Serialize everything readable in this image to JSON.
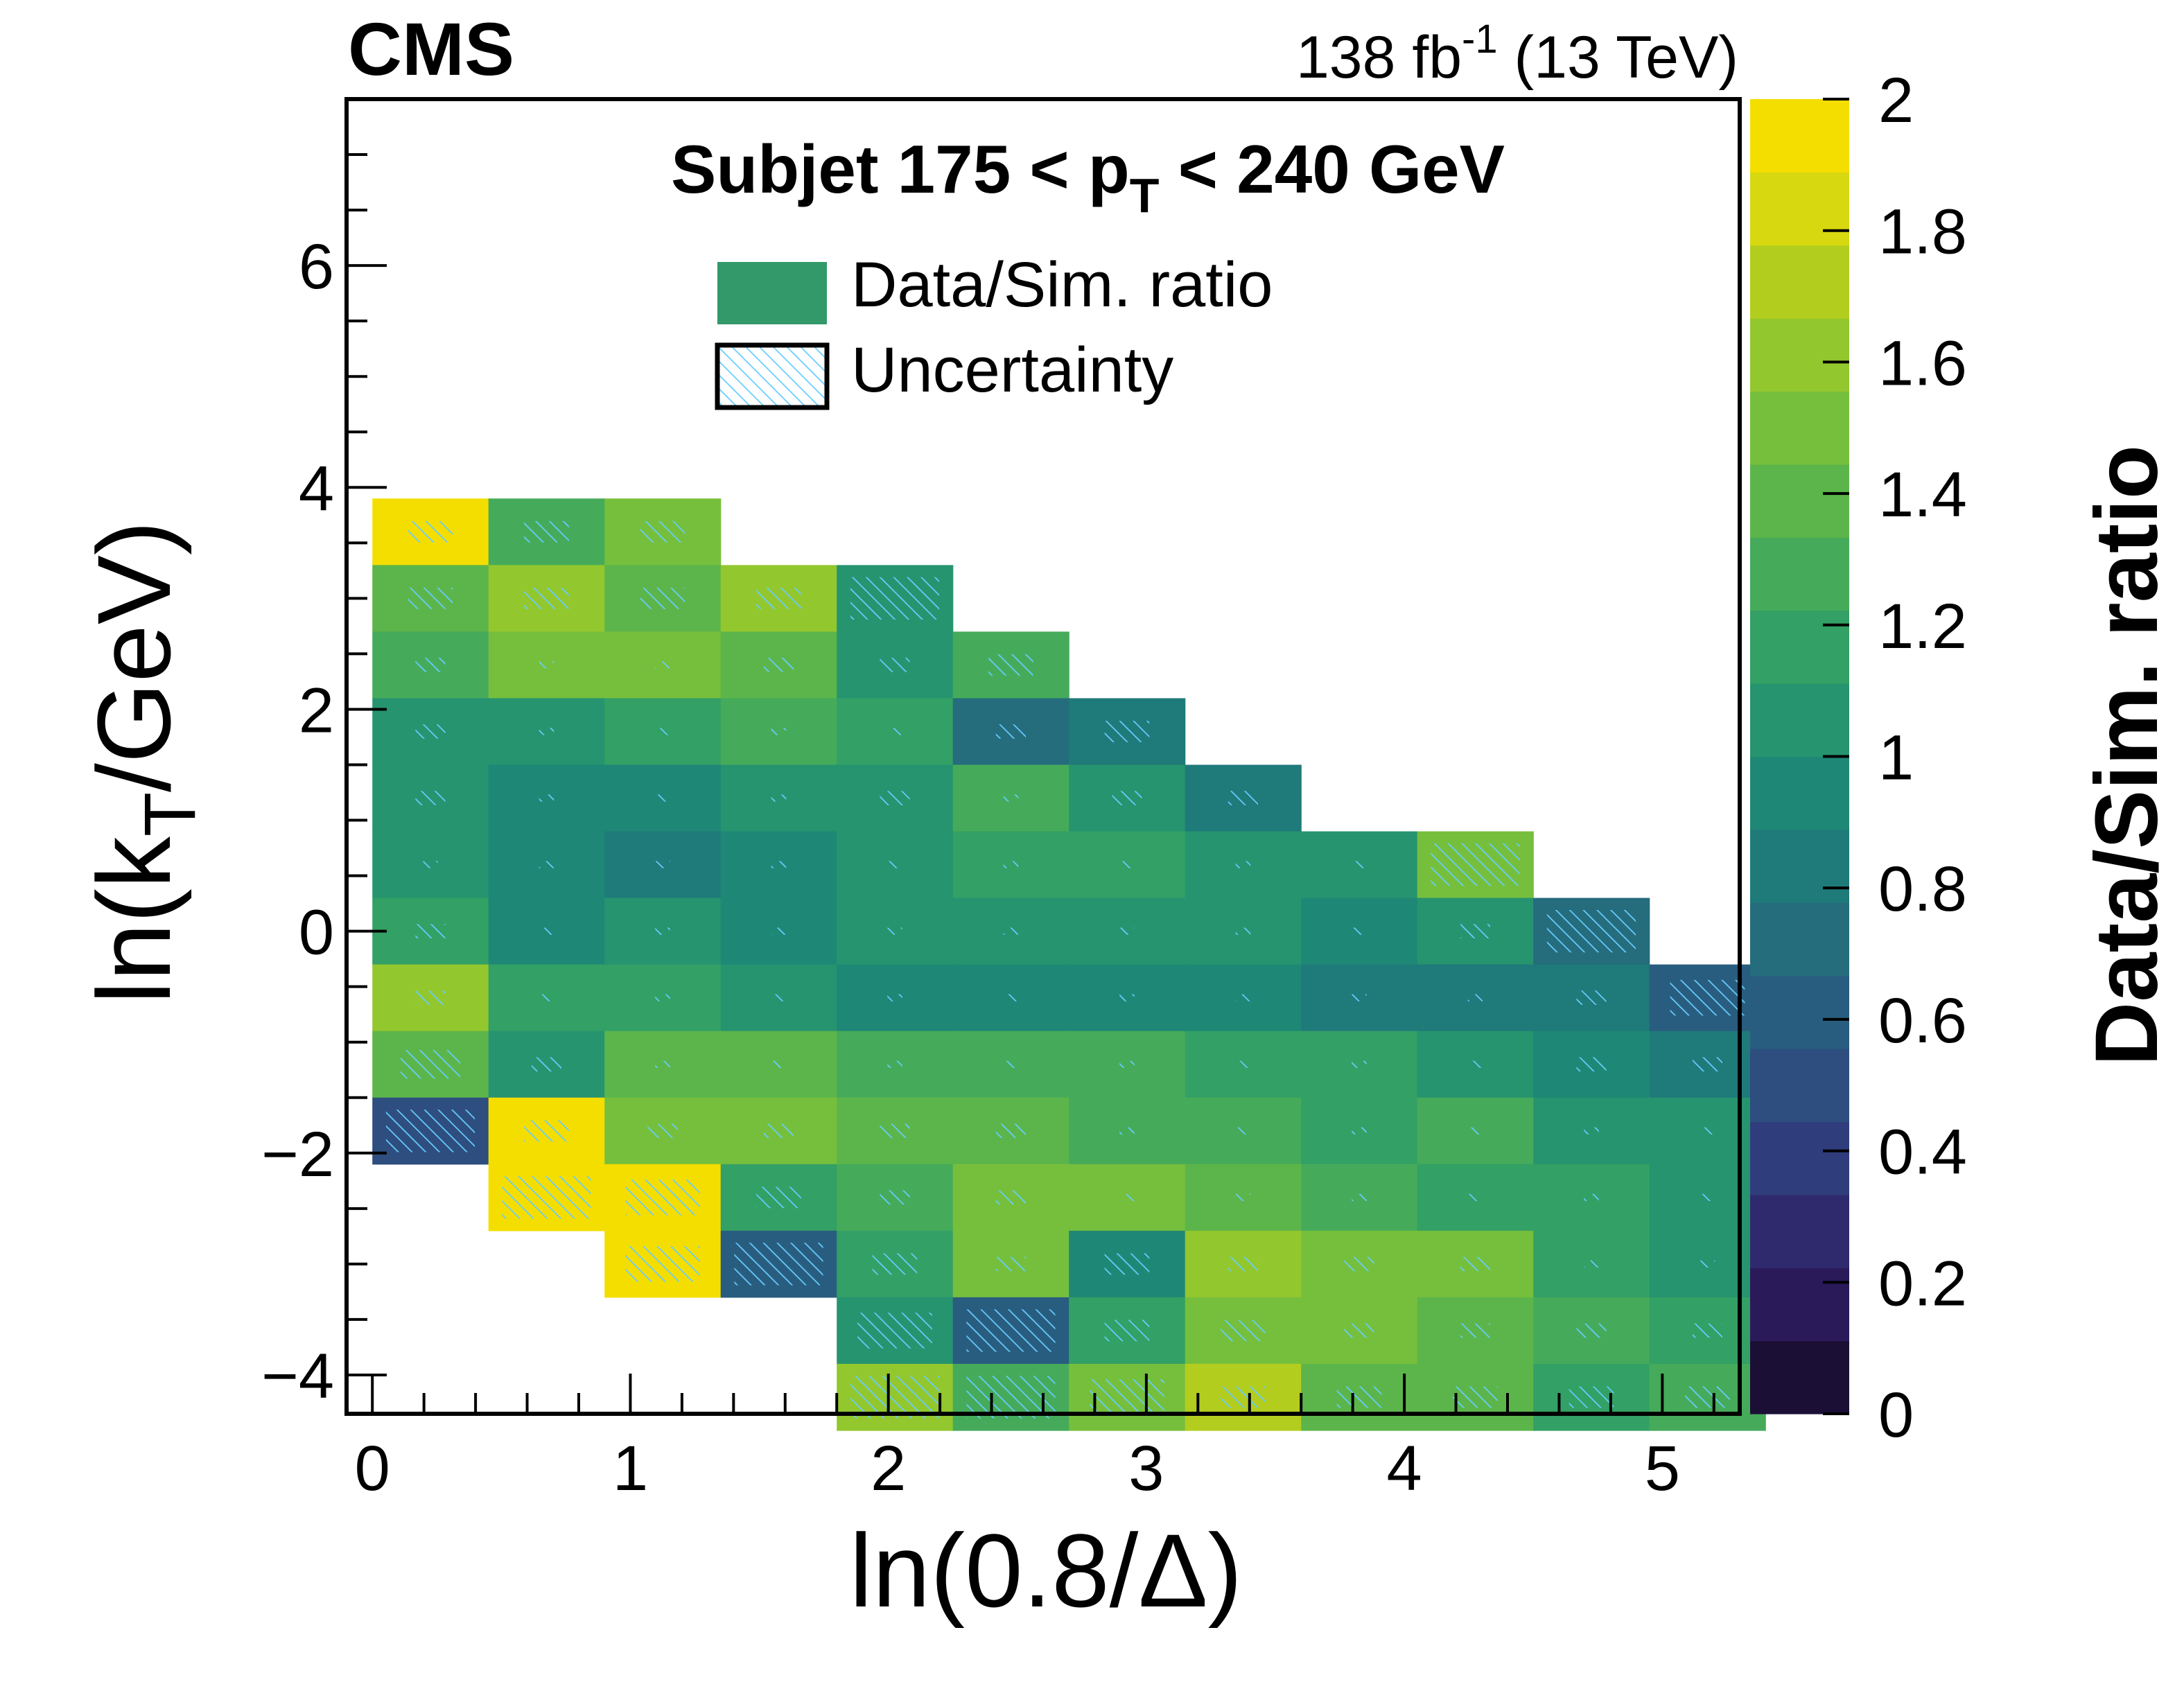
{
  "chart_data": {
    "type": "heatmap",
    "experiment": "CMS",
    "lumi": {
      "value": "138 fb",
      "exponent": "-1",
      "energy": "(13 TeV)"
    },
    "title": {
      "prefix": "Subjet 175 < p",
      "sub": "T",
      "suffix": " < 240 GeV"
    },
    "legend": [
      {
        "label": "Data/Sim. ratio"
      },
      {
        "label": "Uncertainty"
      }
    ],
    "legend_placement": "top-center",
    "xlabel": "ln(0.8/Δ)",
    "ylabel": {
      "prefix": "ln(k",
      "sub": "T",
      "suffix": "/GeV)"
    },
    "zlabel": "Data/Sim. ratio",
    "xlim": [
      -0.1,
      5.3
    ],
    "ylim": [
      -4.35,
      7.5
    ],
    "zlim": [
      0,
      2
    ],
    "x_ticks": [
      0,
      1,
      2,
      3,
      4,
      5
    ],
    "x_tick_labels": [
      "0",
      "1",
      "2",
      "3",
      "4",
      "5"
    ],
    "y_ticks": [
      -4,
      -2,
      0,
      2,
      4,
      6
    ],
    "y_tick_labels": [
      "−4",
      "−2",
      "0",
      "2",
      "4",
      "6"
    ],
    "z_ticks": [
      0,
      0.2,
      0.4,
      0.6,
      0.8,
      1,
      1.2,
      1.4,
      1.6,
      1.8,
      2
    ],
    "z_tick_labels": [
      "0",
      "0.2",
      "0.4",
      "0.6",
      "0.8",
      "1",
      "1.2",
      "1.4",
      "1.6",
      "1.8",
      "2"
    ],
    "palette": [
      "#1c0f35",
      "#2b1a5a",
      "#2f2a6e",
      "#303d7c",
      "#2d4e7e",
      "#295d7f",
      "#256c7d",
      "#1f7a7a",
      "#1f8775",
      "#26946f",
      "#33a065",
      "#45ab5a",
      "#5cb54a",
      "#76bf3c",
      "#93c72e",
      "#b3cd1e",
      "#d7d80f",
      "#f4de00"
    ],
    "cell_width": 0.45,
    "cell_height": 0.6,
    "cells": [
      {
        "x": 0.0,
        "y": 3.9,
        "z": 2.0,
        "u": 0.15
      },
      {
        "x": 0.45,
        "y": 3.9,
        "z": 1.3,
        "u": 0.15
      },
      {
        "x": 0.9,
        "y": 3.9,
        "z": 1.5,
        "u": 0.15
      },
      {
        "x": 0.0,
        "y": 3.3,
        "z": 1.35,
        "u": 0.15
      },
      {
        "x": 0.45,
        "y": 3.3,
        "z": 1.6,
        "u": 0.15
      },
      {
        "x": 0.9,
        "y": 3.3,
        "z": 1.35,
        "u": 0.15
      },
      {
        "x": 1.35,
        "y": 3.3,
        "z": 1.6,
        "u": 0.15
      },
      {
        "x": 1.8,
        "y": 3.3,
        "z": 1.0,
        "u": 0.3
      },
      {
        "x": 0.0,
        "y": 2.7,
        "z": 1.25,
        "u": 0.1
      },
      {
        "x": 0.45,
        "y": 2.7,
        "z": 1.5,
        "u": 0.05
      },
      {
        "x": 0.9,
        "y": 2.7,
        "z": 1.5,
        "u": 0.05
      },
      {
        "x": 1.35,
        "y": 2.7,
        "z": 1.4,
        "u": 0.1
      },
      {
        "x": 1.8,
        "y": 2.7,
        "z": 1.0,
        "u": 0.1
      },
      {
        "x": 2.25,
        "y": 2.7,
        "z": 1.3,
        "u": 0.15
      },
      {
        "x": 0.0,
        "y": 2.1,
        "z": 1.05,
        "u": 0.1
      },
      {
        "x": 0.45,
        "y": 2.1,
        "z": 1.1,
        "u": 0.05
      },
      {
        "x": 0.9,
        "y": 2.1,
        "z": 1.2,
        "u": 0.05
      },
      {
        "x": 1.35,
        "y": 2.1,
        "z": 1.3,
        "u": 0.05
      },
      {
        "x": 1.8,
        "y": 2.1,
        "z": 1.15,
        "u": 0.05
      },
      {
        "x": 2.25,
        "y": 2.1,
        "z": 0.75,
        "u": 0.1
      },
      {
        "x": 2.7,
        "y": 2.1,
        "z": 0.8,
        "u": 0.15
      },
      {
        "x": 0.0,
        "y": 1.5,
        "z": 1.05,
        "u": 0.1
      },
      {
        "x": 0.45,
        "y": 1.5,
        "z": 0.9,
        "u": 0.05
      },
      {
        "x": 0.9,
        "y": 1.5,
        "z": 0.9,
        "u": 0.05
      },
      {
        "x": 1.35,
        "y": 1.5,
        "z": 1.0,
        "u": 0.05
      },
      {
        "x": 1.8,
        "y": 1.5,
        "z": 1.05,
        "u": 0.1
      },
      {
        "x": 2.25,
        "y": 1.5,
        "z": 1.3,
        "u": 0.05
      },
      {
        "x": 2.7,
        "y": 1.5,
        "z": 1.05,
        "u": 0.1
      },
      {
        "x": 3.15,
        "y": 1.5,
        "z": 0.8,
        "u": 0.1
      },
      {
        "x": 0.0,
        "y": 0.9,
        "z": 1.05,
        "u": 0.05
      },
      {
        "x": 0.45,
        "y": 0.9,
        "z": 0.9,
        "u": 0.05
      },
      {
        "x": 0.9,
        "y": 0.9,
        "z": 0.8,
        "u": 0.05
      },
      {
        "x": 1.35,
        "y": 0.9,
        "z": 0.95,
        "u": 0.05
      },
      {
        "x": 1.8,
        "y": 0.9,
        "z": 1.05,
        "u": 0.05
      },
      {
        "x": 2.25,
        "y": 0.9,
        "z": 1.15,
        "u": 0.05
      },
      {
        "x": 2.7,
        "y": 0.9,
        "z": 1.15,
        "u": 0.05
      },
      {
        "x": 3.15,
        "y": 0.9,
        "z": 1.05,
        "u": 0.05
      },
      {
        "x": 3.6,
        "y": 0.9,
        "z": 1.0,
        "u": 0.05
      },
      {
        "x": 4.05,
        "y": 0.9,
        "z": 1.5,
        "u": 0.3
      },
      {
        "x": 0.0,
        "y": 0.3,
        "z": 1.2,
        "u": 0.1
      },
      {
        "x": 0.45,
        "y": 0.3,
        "z": 0.9,
        "u": 0.05
      },
      {
        "x": 0.9,
        "y": 0.3,
        "z": 1.0,
        "u": 0.05
      },
      {
        "x": 1.35,
        "y": 0.3,
        "z": 0.9,
        "u": 0.05
      },
      {
        "x": 1.8,
        "y": 0.3,
        "z": 1.0,
        "u": 0.05
      },
      {
        "x": 2.25,
        "y": 0.3,
        "z": 1.0,
        "u": 0.05
      },
      {
        "x": 2.7,
        "y": 0.3,
        "z": 1.1,
        "u": 0.05
      },
      {
        "x": 3.15,
        "y": 0.3,
        "z": 1.05,
        "u": 0.05
      },
      {
        "x": 3.6,
        "y": 0.3,
        "z": 0.95,
        "u": 0.05
      },
      {
        "x": 4.05,
        "y": 0.3,
        "z": 1.05,
        "u": 0.1
      },
      {
        "x": 4.5,
        "y": 0.3,
        "z": 0.7,
        "u": 0.3
      },
      {
        "x": 0.0,
        "y": -0.3,
        "z": 1.65,
        "u": 0.1
      },
      {
        "x": 0.45,
        "y": -0.3,
        "z": 1.15,
        "u": 0.05
      },
      {
        "x": 0.9,
        "y": -0.3,
        "z": 1.15,
        "u": 0.05
      },
      {
        "x": 1.35,
        "y": -0.3,
        "z": 1.1,
        "u": 0.05
      },
      {
        "x": 1.8,
        "y": -0.3,
        "z": 0.95,
        "u": 0.05
      },
      {
        "x": 2.25,
        "y": -0.3,
        "z": 0.95,
        "u": 0.05
      },
      {
        "x": 2.7,
        "y": -0.3,
        "z": 0.95,
        "u": 0.05
      },
      {
        "x": 3.15,
        "y": -0.3,
        "z": 0.95,
        "u": 0.05
      },
      {
        "x": 3.6,
        "y": -0.3,
        "z": 0.85,
        "u": 0.05
      },
      {
        "x": 4.05,
        "y": -0.3,
        "z": 0.8,
        "u": 0.05
      },
      {
        "x": 4.5,
        "y": -0.3,
        "z": 0.8,
        "u": 0.1
      },
      {
        "x": 4.95,
        "y": -0.3,
        "z": 0.6,
        "u": 0.25
      },
      {
        "x": 0.0,
        "y": -0.9,
        "z": 1.4,
        "u": 0.2
      },
      {
        "x": 0.45,
        "y": -0.9,
        "z": 1.05,
        "u": 0.1
      },
      {
        "x": 0.9,
        "y": -0.9,
        "z": 1.35,
        "u": 0.05
      },
      {
        "x": 1.35,
        "y": -0.9,
        "z": 1.35,
        "u": 0.05
      },
      {
        "x": 1.8,
        "y": -0.9,
        "z": 1.25,
        "u": 0.05
      },
      {
        "x": 2.25,
        "y": -0.9,
        "z": 1.25,
        "u": 0.05
      },
      {
        "x": 2.7,
        "y": -0.9,
        "z": 1.25,
        "u": 0.05
      },
      {
        "x": 3.15,
        "y": -0.9,
        "z": 1.15,
        "u": 0.05
      },
      {
        "x": 3.6,
        "y": -0.9,
        "z": 1.15,
        "u": 0.05
      },
      {
        "x": 4.05,
        "y": -0.9,
        "z": 1.0,
        "u": 0.05
      },
      {
        "x": 4.5,
        "y": -0.9,
        "z": 0.9,
        "u": 0.1
      },
      {
        "x": 4.95,
        "y": -0.9,
        "z": 0.8,
        "u": 0.1
      },
      {
        "x": 0.0,
        "y": -1.5,
        "z": 0.45,
        "u": 0.3
      },
      {
        "x": 0.45,
        "y": -1.5,
        "z": 2.0,
        "u": 0.15
      },
      {
        "x": 0.9,
        "y": -1.5,
        "z": 1.45,
        "u": 0.1
      },
      {
        "x": 1.35,
        "y": -1.5,
        "z": 1.45,
        "u": 0.1
      },
      {
        "x": 1.8,
        "y": -1.5,
        "z": 1.4,
        "u": 0.1
      },
      {
        "x": 2.25,
        "y": -1.5,
        "z": 1.4,
        "u": 0.1
      },
      {
        "x": 2.7,
        "y": -1.5,
        "z": 1.25,
        "u": 0.05
      },
      {
        "x": 3.15,
        "y": -1.5,
        "z": 1.25,
        "u": 0.05
      },
      {
        "x": 3.6,
        "y": -1.5,
        "z": 1.2,
        "u": 0.05
      },
      {
        "x": 4.05,
        "y": -1.5,
        "z": 1.3,
        "u": 0.05
      },
      {
        "x": 4.5,
        "y": -1.5,
        "z": 1.1,
        "u": 0.05
      },
      {
        "x": 4.95,
        "y": -1.5,
        "z": 1.05,
        "u": 0.05
      },
      {
        "x": 0.45,
        "y": -2.1,
        "z": 2.0,
        "u": 0.3
      },
      {
        "x": 0.9,
        "y": -2.1,
        "z": 2.0,
        "u": 0.25
      },
      {
        "x": 1.35,
        "y": -2.1,
        "z": 1.2,
        "u": 0.15
      },
      {
        "x": 1.8,
        "y": -2.1,
        "z": 1.25,
        "u": 0.1
      },
      {
        "x": 2.25,
        "y": -2.1,
        "z": 1.5,
        "u": 0.1
      },
      {
        "x": 2.7,
        "y": -2.1,
        "z": 1.45,
        "u": 0.05
      },
      {
        "x": 3.15,
        "y": -2.1,
        "z": 1.35,
        "u": 0.05
      },
      {
        "x": 3.6,
        "y": -2.1,
        "z": 1.25,
        "u": 0.05
      },
      {
        "x": 4.05,
        "y": -2.1,
        "z": 1.15,
        "u": 0.05
      },
      {
        "x": 4.5,
        "y": -2.1,
        "z": 1.2,
        "u": 0.05
      },
      {
        "x": 4.95,
        "y": -2.1,
        "z": 1.1,
        "u": 0.05
      },
      {
        "x": 0.9,
        "y": -2.7,
        "z": 2.0,
        "u": 0.25
      },
      {
        "x": 1.35,
        "y": -2.7,
        "z": 0.65,
        "u": 0.3
      },
      {
        "x": 1.8,
        "y": -2.7,
        "z": 1.2,
        "u": 0.15
      },
      {
        "x": 2.25,
        "y": -2.7,
        "z": 1.45,
        "u": 0.1
      },
      {
        "x": 2.7,
        "y": -2.7,
        "z": 0.95,
        "u": 0.15
      },
      {
        "x": 3.15,
        "y": -2.7,
        "z": 1.6,
        "u": 0.1
      },
      {
        "x": 3.6,
        "y": -2.7,
        "z": 1.45,
        "u": 0.1
      },
      {
        "x": 4.05,
        "y": -2.7,
        "z": 1.45,
        "u": 0.1
      },
      {
        "x": 4.5,
        "y": -2.7,
        "z": 1.2,
        "u": 0.05
      },
      {
        "x": 4.95,
        "y": -2.7,
        "z": 1.1,
        "u": 0.05
      },
      {
        "x": 1.8,
        "y": -3.3,
        "z": 1.1,
        "u": 0.25
      },
      {
        "x": 2.25,
        "y": -3.3,
        "z": 0.6,
        "u": 0.35
      },
      {
        "x": 2.7,
        "y": -3.3,
        "z": 1.15,
        "u": 0.15
      },
      {
        "x": 3.15,
        "y": -3.3,
        "z": 1.5,
        "u": 0.15
      },
      {
        "x": 3.6,
        "y": -3.3,
        "z": 1.45,
        "u": 0.1
      },
      {
        "x": 4.05,
        "y": -3.3,
        "z": 1.35,
        "u": 0.1
      },
      {
        "x": 4.5,
        "y": -3.3,
        "z": 1.25,
        "u": 0.1
      },
      {
        "x": 4.95,
        "y": -3.3,
        "z": 1.15,
        "u": 0.1
      },
      {
        "x": 1.8,
        "y": -3.9,
        "z": 1.6,
        "u": 0.3
      },
      {
        "x": 2.25,
        "y": -3.9,
        "z": 1.3,
        "u": 0.3
      },
      {
        "x": 2.7,
        "y": -3.9,
        "z": 1.5,
        "u": 0.25
      },
      {
        "x": 3.15,
        "y": -3.9,
        "z": 1.75,
        "u": 0.15
      },
      {
        "x": 3.6,
        "y": -3.9,
        "z": 1.35,
        "u": 0.15
      },
      {
        "x": 4.05,
        "y": -3.9,
        "z": 1.4,
        "u": 0.15
      },
      {
        "x": 4.5,
        "y": -3.9,
        "z": 1.15,
        "u": 0.15
      },
      {
        "x": 4.95,
        "y": -3.9,
        "z": 1.3,
        "u": 0.15
      }
    ]
  }
}
